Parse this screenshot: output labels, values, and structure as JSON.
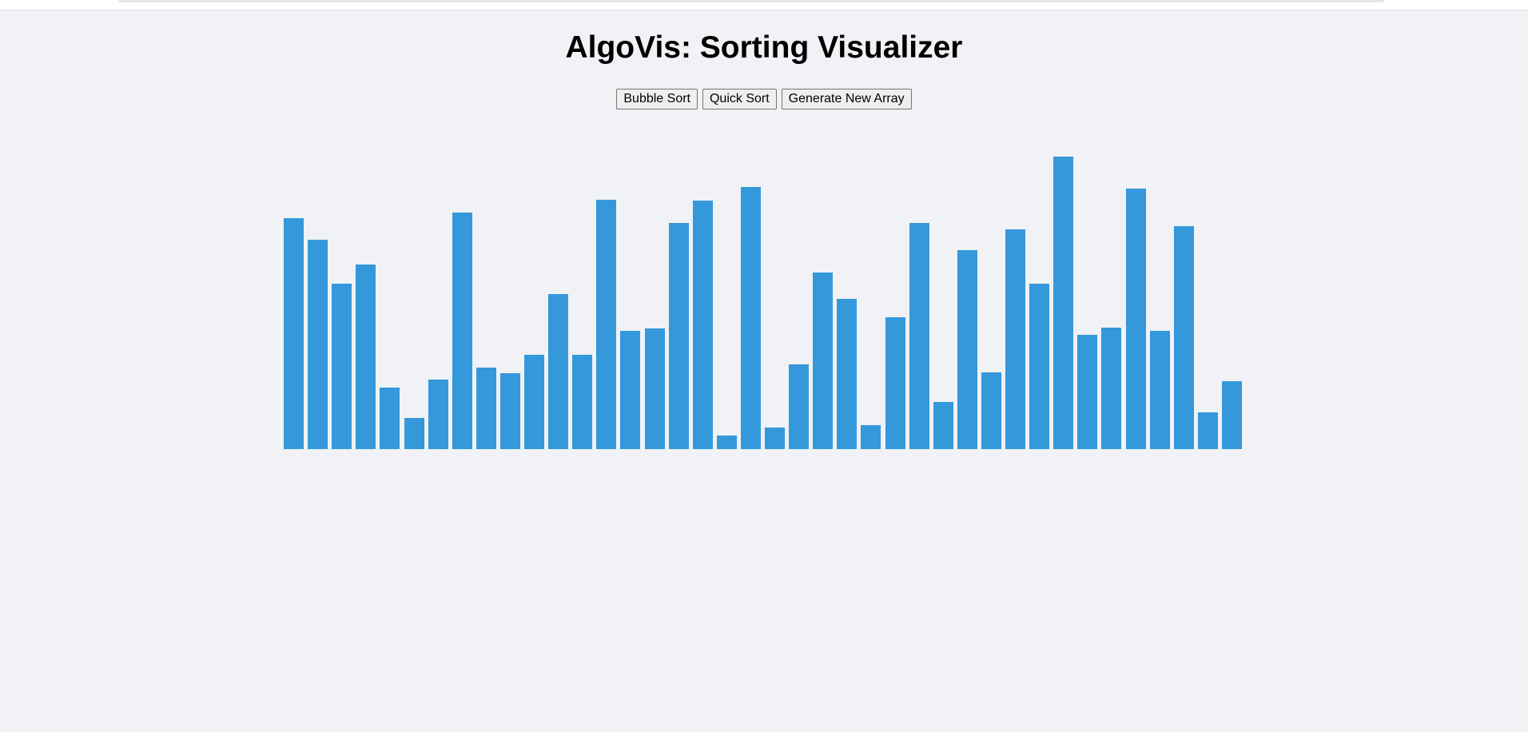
{
  "app": {
    "title": "AlgoVis: Sorting Visualizer"
  },
  "controls": {
    "bubble_sort_label": "Bubble Sort",
    "quick_sort_label": "Quick Sort",
    "generate_label": "Generate New Array"
  },
  "colors": {
    "bar": "#3498db",
    "background": "#f0f2f5"
  },
  "array": {
    "max_value": 100,
    "values": [
      79,
      71.5,
      56.5,
      63,
      21,
      10.7,
      23.7,
      81,
      28,
      26,
      32.2,
      53,
      32.2,
      85.3,
      40.5,
      41.3,
      77.3,
      85,
      4.7,
      89.5,
      7.3,
      29,
      60.5,
      51.3,
      8.2,
      45,
      77.3,
      16,
      68,
      26.3,
      75,
      56.5,
      100,
      39,
      41.5,
      89,
      40.5,
      76.3,
      12.7,
      23.3
    ]
  }
}
